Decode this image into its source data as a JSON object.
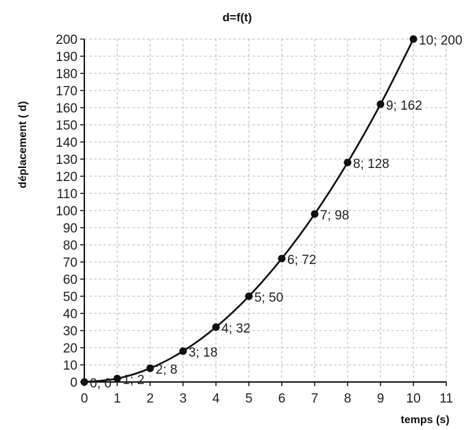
{
  "chart_data": {
    "type": "line",
    "title": "d=f(t)",
    "xlabel": "temps (s)",
    "ylabel": "déplacement ( d)",
    "xlim": [
      0,
      11
    ],
    "ylim": [
      0,
      200
    ],
    "x_ticks": [
      0,
      1,
      2,
      3,
      4,
      5,
      6,
      7,
      8,
      9,
      10,
      11
    ],
    "y_ticks": [
      0,
      10,
      20,
      30,
      40,
      50,
      60,
      70,
      80,
      90,
      100,
      110,
      120,
      130,
      140,
      150,
      160,
      170,
      180,
      190,
      200
    ],
    "grid": true,
    "legend": "none",
    "series": [
      {
        "x": [
          0,
          1,
          2,
          3,
          4,
          5,
          6,
          7,
          8,
          9,
          10
        ],
        "y": [
          0,
          2,
          8,
          18,
          32,
          50,
          72,
          98,
          128,
          162,
          200
        ],
        "point_labels": [
          "0; 0",
          "1; 2",
          "2; 8",
          "3; 18",
          "4; 32",
          "5; 50",
          "6; 72",
          "7; 98",
          "8; 128",
          "9; 162",
          "10; 200"
        ]
      }
    ]
  }
}
